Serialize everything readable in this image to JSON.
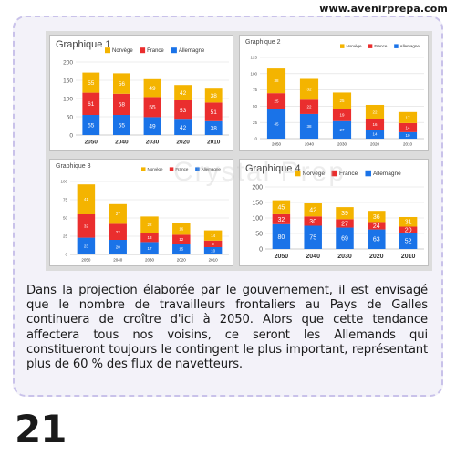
{
  "site_url": "www.avenirprepa.com",
  "paragraph": "Dans la projection élaborée par le gouvernement, il est envisagé que le nombre de travailleurs frontaliers au Pays de Galles continuera de croître d'ici à 2050. Alors que cette tendance affectera tous nos voisins, ce seront les Allemands qui constitueront toujours le contingent le plus important, représentant plus de 60 % des flux de navetteurs.",
  "page_number": "21",
  "watermark": "Crystal Prep",
  "colors": {
    "norvege": "#f4b400",
    "france": "#ea2e2e",
    "allemagne": "#1a73e8"
  },
  "chart_data": [
    {
      "type": "bar",
      "stacked": true,
      "title": "Graphique 1",
      "categories": [
        "2050",
        "2040",
        "2030",
        "2020",
        "2010"
      ],
      "series": [
        {
          "name": "Allemagne",
          "values": [
            55,
            55,
            49,
            42,
            38
          ]
        },
        {
          "name": "France",
          "values": [
            61,
            58,
            55,
            53,
            51
          ]
        },
        {
          "name": "Norvège",
          "values": [
            55,
            56,
            49,
            42,
            38
          ]
        }
      ],
      "yticks": [
        0,
        50,
        100,
        150,
        200
      ],
      "ylim": [
        0,
        200
      ],
      "legend": "top",
      "grid": true
    },
    {
      "type": "bar",
      "stacked": true,
      "title": "Graphique 2",
      "categories": [
        "2050",
        "2040",
        "2030",
        "2020",
        "2010"
      ],
      "series": [
        {
          "name": "Allemagne",
          "values": [
            45,
            38,
            27,
            14,
            10
          ]
        },
        {
          "name": "France",
          "values": [
            25,
            22,
            19,
            16,
            14
          ]
        },
        {
          "name": "Norvège",
          "values": [
            38,
            32,
            25,
            22,
            17
          ]
        }
      ],
      "yticks": [
        0,
        25,
        50,
        75,
        100,
        125
      ],
      "ylim": [
        0,
        125
      ],
      "legend": "top",
      "grid": true
    },
    {
      "type": "bar",
      "stacked": true,
      "title": "Graphique 3",
      "categories": [
        "2050",
        "2040",
        "2030",
        "2020",
        "2010"
      ],
      "series": [
        {
          "name": "Allemagne",
          "values": [
            23,
            20,
            17,
            15,
            10
          ]
        },
        {
          "name": "France",
          "values": [
            32,
            22,
            13,
            12,
            9
          ]
        },
        {
          "name": "Norvège",
          "values": [
            41,
            27,
            22,
            16,
            14
          ]
        }
      ],
      "yticks": [
        0,
        25,
        50,
        75,
        100
      ],
      "ylim": [
        0,
        100
      ],
      "legend": "top",
      "grid": true
    },
    {
      "type": "bar",
      "stacked": true,
      "title": "Graphique 4",
      "categories": [
        "2050",
        "2040",
        "2030",
        "2020",
        "2010"
      ],
      "series": [
        {
          "name": "Allemagne",
          "values": [
            80,
            75,
            69,
            63,
            52
          ]
        },
        {
          "name": "France",
          "values": [
            32,
            30,
            27,
            24,
            20
          ]
        },
        {
          "name": "Norvège",
          "values": [
            45,
            42,
            39,
            36,
            31
          ]
        }
      ],
      "yticks": [
        0,
        50,
        100,
        150,
        200
      ],
      "ylim": [
        0,
        200
      ],
      "legend": "top",
      "grid": true
    }
  ]
}
